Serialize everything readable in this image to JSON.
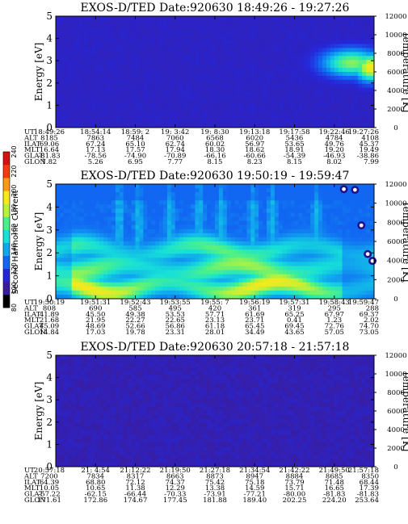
{
  "chart_data": [
    {
      "type": "heatmap",
      "title": "EXOS-D/TED   Date:920630   18:49:26 - 19:27:26",
      "ylabel": "Energy [eV]",
      "y2label": "Temperature [K]",
      "ylim": [
        0,
        5
      ],
      "y2lim": [
        0,
        12000
      ],
      "yticks": [
        "0",
        "1",
        "2",
        "3",
        "4",
        "5"
      ],
      "y2ticks": [
        "0",
        "2000",
        "4000",
        "6000",
        "8000",
        "10000",
        "12000"
      ],
      "ephemeris": [
        {
          "label": "UT",
          "values": [
            "18:49:26",
            "18:54:14",
            "18:59: 2",
            "19: 3:42",
            "19: 8:30",
            "19:13:18",
            "19:17:58",
            "19:22:46",
            "19:27:26"
          ]
        },
        {
          "label": "ALT",
          "values": [
            "8185",
            "7863",
            "7484",
            "7060",
            "6568",
            "6020",
            "5436",
            "4784",
            "4108"
          ]
        },
        {
          "label": "ILAT",
          "values": [
            "69.06",
            "67.24",
            "65.10",
            "62.74",
            "60.02",
            "56.97",
            "53.65",
            "49.76",
            "45.37"
          ]
        },
        {
          "label": "MLT",
          "values": [
            "16.64",
            "17.13",
            "17.57",
            "17.94",
            "18.30",
            "18.62",
            "18.91",
            "19.20",
            "19.49"
          ]
        },
        {
          "label": "GLAT",
          "values": [
            "-81.83",
            "-78.56",
            "-74.90",
            "-70.89",
            "-66.16",
            "-60.66",
            "-54.39",
            "-46.93",
            "-38.86"
          ]
        },
        {
          "label": "GLON",
          "values": [
            "1.82",
            "5.26",
            "6.95",
            "7.77",
            "8.15",
            "8.23",
            "8.15",
            "8.02",
            "7.99"
          ]
        }
      ],
      "features": [
        {
          "x_frac": 0.93,
          "y": 2.9,
          "spread": 0.09,
          "level": 0.5
        },
        {
          "x_frac": 0.99,
          "y": 2.7,
          "spread": 0.05,
          "level": 0.65
        }
      ],
      "base_level": 0.06
    },
    {
      "type": "heatmap",
      "title": "EXOS-D/TED   Date:920630   19:50:19 - 19:59:47",
      "ylabel": "Energy [eV]",
      "y2label": "Temperature [K]",
      "colorbar_label": "Second Harmonic Current",
      "ylim": [
        0,
        5
      ],
      "y2lim": [
        0,
        12000
      ],
      "yticks": [
        "0",
        "1",
        "2",
        "3",
        "4",
        "5"
      ],
      "y2ticks": [
        "0",
        "2000",
        "4000",
        "6000",
        "8000",
        "10000",
        "12000"
      ],
      "ephemeris": [
        {
          "label": "UT",
          "values": [
            "19:50:19",
            "19:51:31",
            "19:52:43",
            "19:53:55",
            "19:55: 7",
            "19:56:19",
            "19:57:31",
            "19:58:43",
            "19:59:47"
          ]
        },
        {
          "label": "ALT",
          "values": [
            "808",
            "690",
            "585",
            "495",
            "420",
            "361",
            "319",
            "295",
            "288"
          ]
        },
        {
          "label": "ILAT",
          "values": [
            "41.89",
            "45.50",
            "49.38",
            "53.53",
            "57.71",
            "61.69",
            "65.25",
            "67.97",
            "69.37"
          ]
        },
        {
          "label": "MLT",
          "values": [
            "21.68",
            "21.95",
            "22.27",
            "22.65",
            "23.13",
            "23.71",
            "0.41",
            "1.23",
            "2.02"
          ]
        },
        {
          "label": "GLAT",
          "values": [
            "45.09",
            "48.69",
            "52.66",
            "56.86",
            "61.18",
            "65.45",
            "69.45",
            "72.76",
            "74.70"
          ]
        },
        {
          "label": "GLON",
          "values": [
            "14.84",
            "17.03",
            "19.78",
            "23.31",
            "28.01",
            "34.49",
            "43.65",
            "57.05",
            "73.05"
          ]
        }
      ],
      "features": [
        {
          "type": "band",
          "y": 0.5,
          "width": 0.5,
          "level": 0.5
        },
        {
          "type": "band",
          "y": 1.3,
          "width": 0.6,
          "level": 0.38
        },
        {
          "type": "band",
          "y": 2.1,
          "width": 0.5,
          "level": 0.32
        },
        {
          "type": "dot",
          "x_frac": 0.905,
          "y": 4.78,
          "level": 1.0
        },
        {
          "type": "dot",
          "x_frac": 0.94,
          "y": 4.75,
          "level": 1.0
        },
        {
          "type": "dot",
          "x_frac": 0.96,
          "y": 3.2,
          "level": 1.0
        },
        {
          "type": "dot",
          "x_frac": 0.98,
          "y": 1.95,
          "level": 1.0
        },
        {
          "type": "dot",
          "x_frac": 0.995,
          "y": 1.65,
          "level": 1.0
        }
      ],
      "base_level": 0.2
    },
    {
      "type": "heatmap",
      "title": "EXOS-D/TED   Date:920630   20:57:18 - 21:57:18",
      "ylabel": "Energy [eV]",
      "y2label": "Temperature [K]",
      "ylim": [
        0,
        5
      ],
      "y2lim": [
        0,
        12000
      ],
      "yticks": [
        "0",
        "1",
        "2",
        "3",
        "4",
        "5"
      ],
      "y2ticks": [
        "0",
        "2000",
        "4000",
        "6000",
        "8000",
        "10000",
        "12000"
      ],
      "ephemeris": [
        {
          "label": "UT",
          "values": [
            "20:57:18",
            "21: 4:54",
            "21:12:22",
            "21:19:50",
            "21:27:18",
            "21:34:54",
            "21:42:22",
            "21:49:50",
            "21:57:18"
          ]
        },
        {
          "label": "ALT",
          "values": [
            "7200",
            "7834",
            "8317",
            "8663",
            "8873",
            "8947",
            "8884",
            "8685",
            "8350"
          ]
        },
        {
          "label": "ILAT",
          "values": [
            "64.39",
            "68.80",
            "72.12",
            "74.37",
            "75.42",
            "75.18",
            "73.79",
            "71.48",
            "68.44"
          ]
        },
        {
          "label": "MLT",
          "values": [
            "10.05",
            "10.65",
            "11.38",
            "12.29",
            "13.38",
            "14.59",
            "15.71",
            "16.65",
            "17.39"
          ]
        },
        {
          "label": "GLAT",
          "values": [
            "-57.22",
            "-62.15",
            "-66.44",
            "-70.33",
            "-73.91",
            "-77.21",
            "-80.00",
            "-81.83",
            "-81.83"
          ]
        },
        {
          "label": "GLON",
          "values": [
            "171.61",
            "172.86",
            "174.67",
            "177.45",
            "181.88",
            "189.40",
            "202.25",
            "224.20",
            "253.64"
          ]
        }
      ],
      "features": [],
      "base_level": 0.04
    }
  ],
  "colorbar": {
    "ticks": [
      "80",
      "100",
      "120",
      "140",
      "160",
      "180",
      "200",
      "220",
      "240"
    ],
    "colors": [
      "#000000",
      "#3a1c9c",
      "#2626d8",
      "#1166f2",
      "#10a7ee",
      "#16e0d8",
      "#4af08a",
      "#b8f23a",
      "#f8e81c",
      "#fc9a14",
      "#f83a10",
      "#d81010"
    ]
  }
}
